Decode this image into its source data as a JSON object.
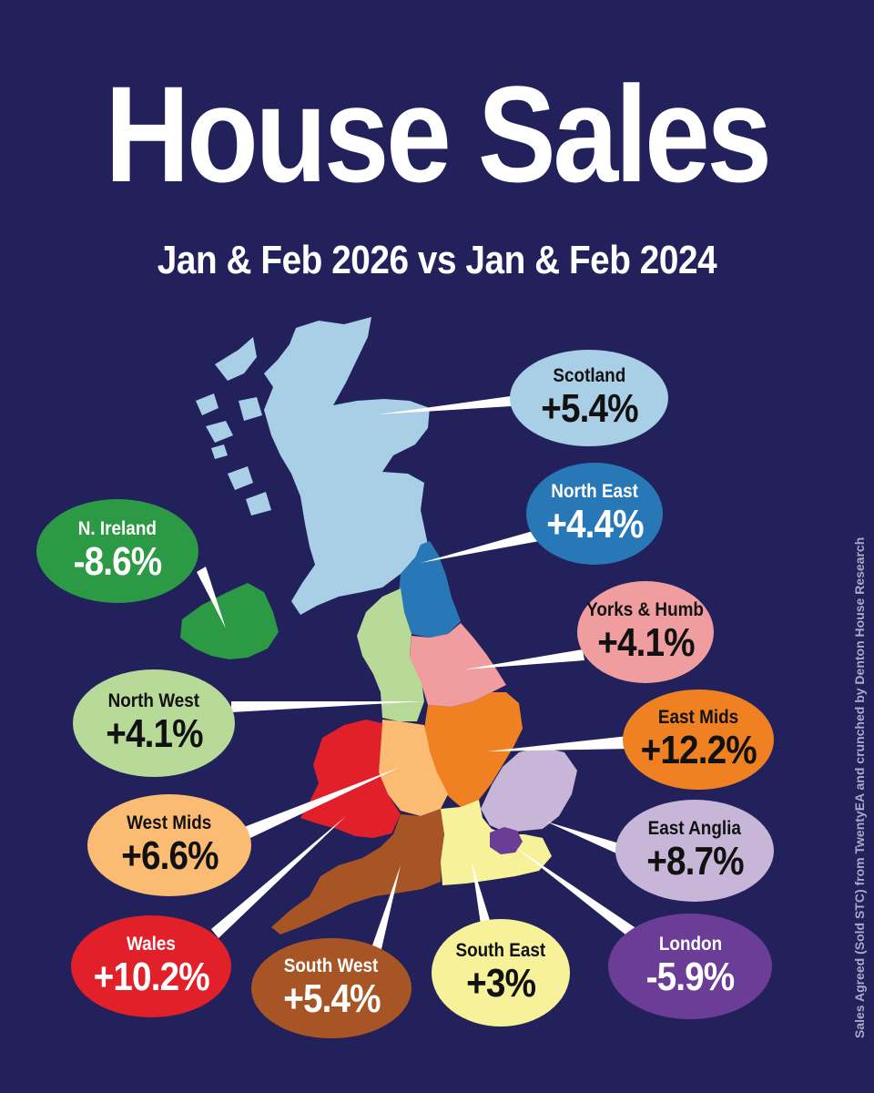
{
  "header": {
    "title": "House Sales",
    "subtitle": "Jan & Feb 2026 vs Jan & Feb 2024"
  },
  "regions": {
    "scotland": {
      "name": "Scotland",
      "change": "+5.4%",
      "color": "#a8cfe6"
    },
    "north_east": {
      "name": "North East",
      "change": "+4.4%",
      "color": "#2878b8"
    },
    "yorks_humb": {
      "name": "Yorks & Humb",
      "change": "+4.1%",
      "color": "#ef9d9e"
    },
    "east_mids": {
      "name": "East Mids",
      "change": "+12.2%",
      "color": "#f08123"
    },
    "east_anglia": {
      "name": "East Anglia",
      "change": "+8.7%",
      "color": "#c7b6d8"
    },
    "london": {
      "name": "London",
      "change": "-5.9%",
      "color": "#6b3d97"
    },
    "south_east": {
      "name": "South East",
      "change": "+3%",
      "color": "#f7f29a"
    },
    "south_west": {
      "name": "South West",
      "change": "+5.4%",
      "color": "#a75525"
    },
    "wales": {
      "name": "Wales",
      "change": "+10.2%",
      "color": "#e2202a"
    },
    "west_mids": {
      "name": "West Mids",
      "change": "+6.6%",
      "color": "#fbbb73"
    },
    "north_west": {
      "name": "North West",
      "change": "+4.1%",
      "color": "#b7da98"
    },
    "n_ireland": {
      "name": "N. Ireland",
      "change": "-8.6%",
      "color": "#2c9a44"
    }
  },
  "colors": {
    "background": "#23215b",
    "text_light": "#ffffff",
    "text_dark": "#111111"
  },
  "credit": "Sales Agreed (Sold STC) from TwentyEA and crunched by Denton House Research"
}
